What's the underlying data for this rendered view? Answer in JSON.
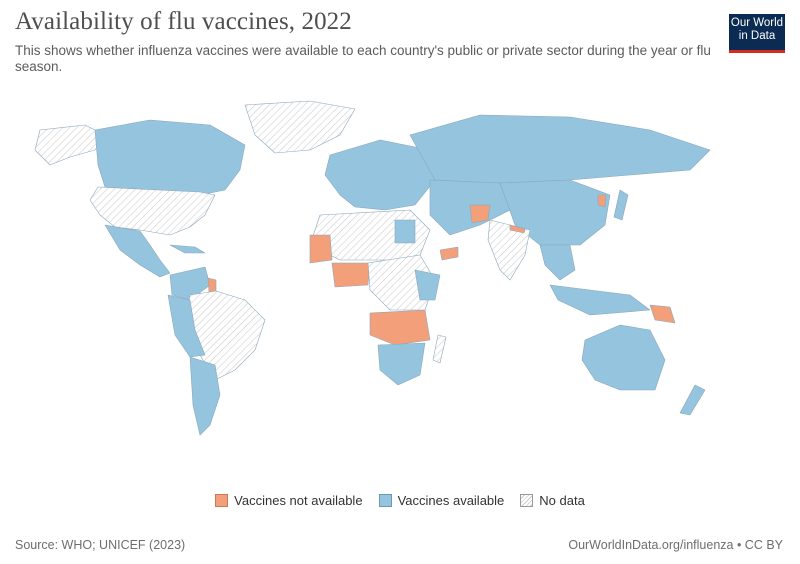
{
  "header": {
    "title": "Availability of flu vaccines, 2022",
    "subtitle": "This shows whether influenza vaccines were available to each country's public or private sector during the year or flu season."
  },
  "logo": {
    "line1": "Our World",
    "line2": "in Data"
  },
  "legend": {
    "items": [
      {
        "label": "Vaccines not available",
        "color": "#f39f7a"
      },
      {
        "label": "Vaccines available",
        "color": "#95c4de"
      },
      {
        "label": "No data",
        "color": "#ffffff"
      }
    ]
  },
  "colors": {
    "not_available": "#f39f7a",
    "available": "#95c4de",
    "no_data": "#ffffff",
    "border": "#6a8fa8"
  },
  "footer": {
    "source": "Source: WHO; UNICEF (2023)",
    "credit": "OurWorldInData.org/influenza • CC BY"
  }
}
